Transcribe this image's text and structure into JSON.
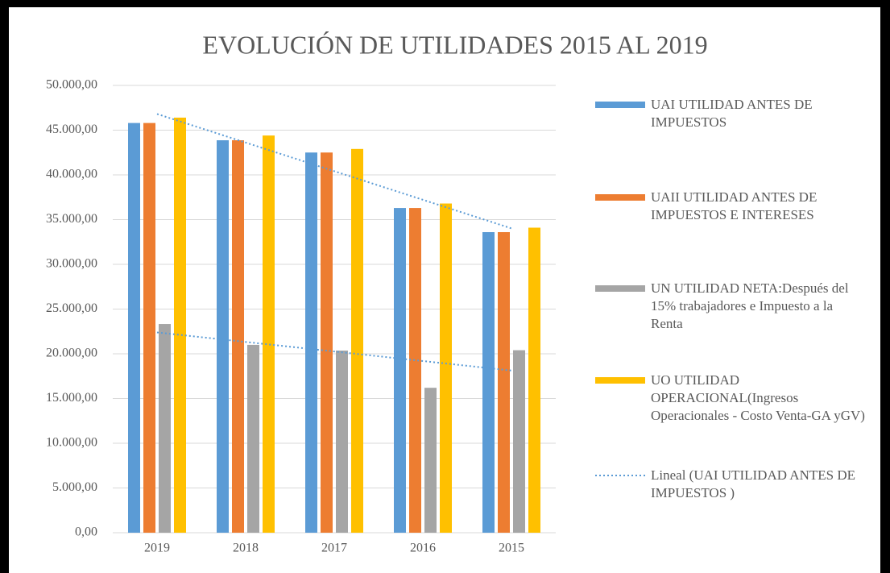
{
  "chart_data": {
    "type": "bar",
    "title": "EVOLUCIÓN DE UTILIDADES  2015 AL 2019",
    "categories": [
      "2019",
      "2018",
      "2017",
      "2016",
      "2015"
    ],
    "series": [
      {
        "name": "UAI UTILIDAD ANTES DE IMPUESTOS",
        "color": "#5b9bd5",
        "values": [
          45800,
          43870,
          42500,
          36300,
          33600
        ],
        "trendline": true
      },
      {
        "name": "UAII UTILIDAD ANTES DE IMPUESTOS E INTERESES",
        "color": "#ed7d31",
        "values": [
          45800,
          43870,
          42500,
          36300,
          33600
        ]
      },
      {
        "name": "UN UTILIDAD NETA:Después del 15% trabajadores e Impuesto a la Renta",
        "color": "#a5a5a5",
        "values": [
          23330,
          21000,
          20360,
          16200,
          20400
        ],
        "trendline": true
      },
      {
        "name": "UO UTILIDAD OPERACIONAL(Ingresos Operacionales - Costo Venta-GA yGV)",
        "color": "#ffc000",
        "values": [
          46400,
          44400,
          42900,
          36800,
          34100
        ]
      }
    ],
    "trend_label": "Lineal (UAI UTILIDAD ANTES DE IMPUESTOS )",
    "trend_color": "#5b9bd5",
    "ylim": [
      0,
      50000
    ],
    "yticks": [
      {
        "value": 0,
        "label": "0,00"
      },
      {
        "value": 5000,
        "label": "5.000,00"
      },
      {
        "value": 10000,
        "label": "10.000,00"
      },
      {
        "value": 15000,
        "label": "15.000,00"
      },
      {
        "value": 20000,
        "label": "20.000,00"
      },
      {
        "value": 25000,
        "label": "25.000,00"
      },
      {
        "value": 30000,
        "label": "30.000,00"
      },
      {
        "value": 35000,
        "label": "35.000,00"
      },
      {
        "value": 40000,
        "label": "40.000,00"
      },
      {
        "value": 45000,
        "label": "45.000,00"
      },
      {
        "value": 50000,
        "label": "50.000,00"
      }
    ],
    "grid": true,
    "legend": "right"
  }
}
